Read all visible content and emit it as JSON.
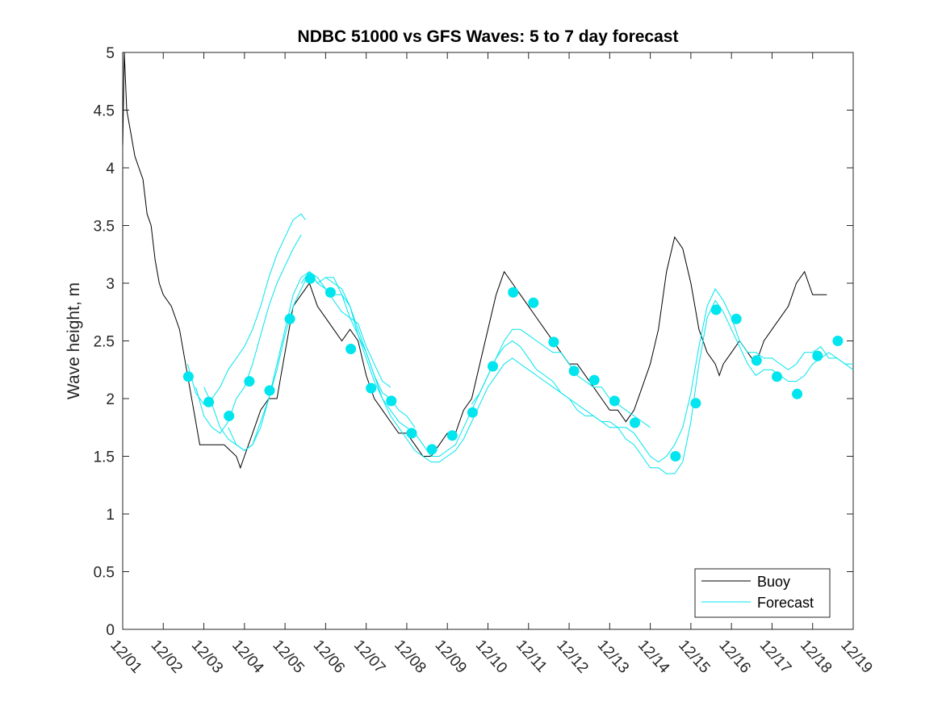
{
  "chart_data": {
    "type": "line",
    "title": "NDBC 51000 vs GFS Waves: 5 to 7 day forecast",
    "xlabel": "",
    "ylabel": "Wave height, m",
    "xlim": [
      0,
      18
    ],
    "ylim": [
      0,
      5
    ],
    "grid": false,
    "xticks": [
      {
        "value": 0,
        "label": "12/01"
      },
      {
        "value": 1,
        "label": "12/02"
      },
      {
        "value": 2,
        "label": "12/03"
      },
      {
        "value": 3,
        "label": "12/04"
      },
      {
        "value": 4,
        "label": "12/05"
      },
      {
        "value": 5,
        "label": "12/06"
      },
      {
        "value": 6,
        "label": "12/07"
      },
      {
        "value": 7,
        "label": "12/08"
      },
      {
        "value": 8,
        "label": "12/09"
      },
      {
        "value": 9,
        "label": "12/10"
      },
      {
        "value": 10,
        "label": "12/11"
      },
      {
        "value": 11,
        "label": "12/12"
      },
      {
        "value": 12,
        "label": "12/13"
      },
      {
        "value": 13,
        "label": "12/14"
      },
      {
        "value": 14,
        "label": "12/15"
      },
      {
        "value": 15,
        "label": "12/16"
      },
      {
        "value": 16,
        "label": "12/17"
      },
      {
        "value": 17,
        "label": "12/18"
      },
      {
        "value": 18,
        "label": "12/19"
      }
    ],
    "yticks": [
      {
        "value": 0,
        "label": "0"
      },
      {
        "value": 0.5,
        "label": "0.5"
      },
      {
        "value": 1,
        "label": "1"
      },
      {
        "value": 1.5,
        "label": "1.5"
      },
      {
        "value": 2,
        "label": "2"
      },
      {
        "value": 2.5,
        "label": "2.5"
      },
      {
        "value": 3,
        "label": "3"
      },
      {
        "value": 3.5,
        "label": "3.5"
      },
      {
        "value": 4,
        "label": "4"
      },
      {
        "value": 4.5,
        "label": "4.5"
      },
      {
        "value": 5,
        "label": "5"
      }
    ],
    "legend": {
      "position": "bottom-right",
      "entries": [
        {
          "label": "Buoy",
          "color": "#000000"
        },
        {
          "label": "Forecast",
          "color": "#00e5ee"
        }
      ]
    },
    "series": [
      {
        "name": "Buoy",
        "color": "#000000",
        "x": [
          0,
          0.04,
          0.1,
          0.2,
          0.3,
          0.4,
          0.5,
          0.6,
          0.7,
          0.8,
          0.9,
          1.0,
          1.2,
          1.4,
          1.6,
          1.8,
          1.9,
          2.0,
          2.2,
          2.5,
          2.8,
          2.9,
          3.0,
          3.2,
          3.4,
          3.6,
          3.8,
          4.0,
          4.2,
          4.4,
          4.6,
          4.8,
          5.0,
          5.2,
          5.4,
          5.6,
          5.8,
          6.0,
          6.2,
          6.4,
          6.6,
          6.8,
          7.0,
          7.2,
          7.4,
          7.6,
          7.8,
          8.0,
          8.2,
          8.4,
          8.6,
          8.8,
          9.0,
          9.2,
          9.4,
          9.6,
          9.8,
          10.0,
          10.2,
          10.4,
          10.6,
          10.8,
          11.0,
          11.2,
          11.4,
          11.6,
          11.8,
          12.0,
          12.2,
          12.4,
          12.6,
          12.8,
          13.0,
          13.2,
          13.4,
          13.6,
          13.8,
          14.0,
          14.2,
          14.4,
          14.6,
          14.7,
          14.8,
          15.0,
          15.2,
          15.4,
          15.6,
          15.8,
          16.0,
          16.2,
          16.4,
          16.6,
          16.8,
          17.0,
          17.2,
          17.35
        ],
        "y": [
          4.2,
          5.0,
          4.5,
          4.3,
          4.1,
          4.0,
          3.9,
          3.6,
          3.5,
          3.2,
          3.0,
          2.9,
          2.8,
          2.6,
          2.2,
          1.8,
          1.6,
          1.6,
          1.6,
          1.6,
          1.5,
          1.4,
          1.5,
          1.7,
          1.9,
          2.0,
          2.0,
          2.4,
          2.8,
          2.9,
          3.0,
          2.8,
          2.7,
          2.6,
          2.5,
          2.6,
          2.5,
          2.2,
          2.0,
          1.9,
          1.8,
          1.7,
          1.7,
          1.6,
          1.5,
          1.5,
          1.6,
          1.7,
          1.7,
          1.9,
          2.0,
          2.3,
          2.6,
          2.9,
          3.1,
          3.0,
          2.9,
          2.8,
          2.7,
          2.6,
          2.5,
          2.4,
          2.3,
          2.3,
          2.2,
          2.1,
          2.0,
          1.9,
          1.9,
          1.8,
          1.9,
          2.1,
          2.3,
          2.6,
          3.1,
          3.4,
          3.3,
          3.0,
          2.6,
          2.4,
          2.3,
          2.2,
          2.3,
          2.4,
          2.5,
          2.4,
          2.3,
          2.5,
          2.6,
          2.7,
          2.8,
          3.0,
          3.1,
          2.9,
          2.9,
          2.9
        ]
      },
      {
        "name": "Forecast",
        "color": "#00e5ee",
        "runs": [
          {
            "x": [
              1.6,
              1.8,
              2.0,
              2.2,
              2.4,
              2.6,
              2.8,
              3.0,
              3.2,
              3.4,
              3.6,
              3.8,
              4.0,
              4.2,
              4.4,
              4.5
            ],
            "y": [
              2.3,
              2.05,
              1.95,
              2.0,
              2.1,
              2.25,
              2.35,
              2.45,
              2.6,
              2.8,
              3.05,
              3.25,
              3.4,
              3.55,
              3.6,
              3.55
            ]
          },
          {
            "x": [
              1.8,
              2.0,
              2.2,
              2.4,
              2.6,
              2.8,
              3.0,
              3.2,
              3.4,
              3.6,
              3.8,
              4.0,
              4.2,
              4.4
            ],
            "y": [
              2.1,
              1.85,
              1.75,
              1.7,
              1.8,
              2.0,
              2.1,
              2.3,
              2.55,
              2.8,
              3.0,
              3.15,
              3.3,
              3.42
            ]
          },
          {
            "x": [
              2.0,
              2.2,
              2.4,
              2.6,
              2.8,
              3.0,
              3.2,
              3.4,
              3.6,
              3.8,
              4.0,
              4.2,
              4.4,
              4.6,
              4.8,
              5.0,
              5.2,
              5.4,
              5.6,
              5.8,
              6.0,
              6.2,
              6.4,
              6.6
            ],
            "y": [
              2.1,
              1.95,
              1.75,
              1.65,
              1.6,
              1.55,
              1.6,
              1.8,
              2.0,
              2.3,
              2.6,
              2.9,
              3.05,
              3.1,
              3.0,
              2.95,
              2.85,
              2.75,
              2.7,
              2.65,
              2.45,
              2.3,
              2.15,
              2.1
            ]
          },
          {
            "x": [
              2.6,
              2.8,
              3.0,
              3.2,
              3.4,
              3.6,
              3.8,
              4.0,
              4.2,
              4.4,
              4.6,
              4.8,
              5.0,
              5.2,
              5.4,
              5.6,
              5.8,
              6.0,
              6.2,
              6.4,
              6.6,
              6.8,
              7.0,
              7.2
            ],
            "y": [
              1.75,
              1.6,
              1.55,
              1.6,
              1.75,
              2.0,
              2.25,
              2.55,
              2.8,
              2.95,
              3.1,
              3.05,
              2.95,
              2.9,
              2.9,
              2.8,
              2.6,
              2.4,
              2.2,
              2.05,
              2.0,
              1.9,
              1.85,
              1.75
            ]
          },
          {
            "x": [
              4.4,
              4.6,
              4.8,
              5.0,
              5.2,
              5.4,
              5.6,
              5.8,
              6.0,
              6.2,
              6.4,
              6.6,
              6.8,
              7.0,
              7.2,
              7.4,
              7.6,
              7.8,
              8.0,
              8.2,
              8.4,
              8.6,
              8.8,
              9.0,
              9.2,
              9.4,
              9.6,
              9.8,
              10.0,
              10.2,
              10.4,
              10.6,
              10.8,
              11.0,
              11.2,
              11.4,
              11.6,
              11.8,
              12.0,
              12.2,
              12.4,
              12.6,
              12.8,
              13.0,
              13.2,
              13.4,
              13.6,
              13.8,
              14.0,
              14.2,
              14.4,
              14.6,
              14.8,
              15.0,
              15.2,
              15.4,
              15.6,
              15.8,
              16.0,
              16.2,
              16.4,
              16.6,
              16.8,
              17.0,
              17.2,
              17.4,
              17.6,
              17.8,
              18.0
            ],
            "y": [
              3.0,
              3.1,
              3.0,
              3.05,
              3.05,
              2.9,
              2.7,
              2.55,
              2.4,
              2.2,
              2.0,
              1.9,
              1.8,
              1.75,
              1.7,
              1.6,
              1.5,
              1.5,
              1.55,
              1.6,
              1.75,
              1.9,
              2.05,
              2.2,
              2.35,
              2.45,
              2.5,
              2.45,
              2.35,
              2.25,
              2.2,
              2.15,
              2.05,
              2.0,
              1.95,
              1.9,
              1.85,
              1.8,
              1.75,
              1.75,
              1.75,
              1.7,
              1.6,
              1.5,
              1.45,
              1.5,
              1.6,
              1.75,
              2.05,
              2.45,
              2.8,
              2.95,
              2.85,
              2.7,
              2.5,
              2.4,
              2.4,
              2.35,
              2.35,
              2.3,
              2.25,
              2.3,
              2.4,
              2.4,
              2.45,
              2.35,
              2.35,
              2.3,
              2.25
            ]
          },
          {
            "x": [
              5.0,
              5.2,
              5.4,
              5.6,
              5.8,
              6.0,
              6.2,
              6.4,
              6.6,
              6.8,
              7.0,
              7.2,
              7.4,
              7.6,
              7.8,
              8.0,
              8.2,
              8.4,
              8.6,
              8.8,
              9.0,
              9.2,
              9.4,
              9.6,
              9.8,
              10.0,
              10.2,
              10.4,
              10.6,
              10.8,
              11.0,
              11.2,
              11.4,
              11.6,
              11.8,
              12.0,
              12.2,
              12.4,
              12.6,
              12.8,
              13.0,
              13.2,
              13.4,
              13.6,
              13.8,
              14.0,
              14.2,
              14.4,
              14.6,
              14.8,
              15.0,
              15.2,
              15.4,
              15.6,
              15.8,
              16.0,
              16.2,
              16.4,
              16.6,
              16.8,
              17.0,
              17.2,
              17.4,
              17.6,
              17.8,
              18.0
            ],
            "y": [
              3.05,
              3.0,
              2.95,
              2.8,
              2.55,
              2.35,
              2.15,
              2.0,
              1.85,
              1.75,
              1.65,
              1.55,
              1.5,
              1.45,
              1.45,
              1.5,
              1.55,
              1.65,
              1.8,
              1.95,
              2.1,
              2.2,
              2.3,
              2.35,
              2.3,
              2.25,
              2.2,
              2.15,
              2.1,
              2.05,
              2.0,
              1.9,
              1.85,
              1.85,
              1.8,
              1.8,
              1.75,
              1.65,
              1.6,
              1.5,
              1.4,
              1.4,
              1.35,
              1.35,
              1.45,
              1.8,
              2.3,
              2.7,
              2.85,
              2.75,
              2.6,
              2.45,
              2.3,
              2.2,
              2.25,
              2.25,
              2.2,
              2.15,
              2.15,
              2.2,
              2.3,
              2.35,
              2.4,
              2.35,
              2.3,
              2.3
            ]
          },
          {
            "x": [
              8.6,
              8.8,
              9.0,
              9.2,
              9.4,
              9.6,
              9.8,
              10.0,
              10.2,
              10.4,
              10.6,
              10.8,
              11.0,
              11.2,
              11.4,
              11.6,
              11.8,
              12.0,
              12.2,
              12.4,
              12.6,
              12.8,
              13.0
            ],
            "y": [
              1.95,
              2.05,
              2.2,
              2.35,
              2.5,
              2.6,
              2.6,
              2.55,
              2.5,
              2.45,
              2.4,
              2.4,
              2.3,
              2.2,
              2.15,
              2.1,
              2.1,
              2.0,
              1.95,
              1.9,
              1.85,
              1.8,
              1.75
            ]
          }
        ],
        "markers": [
          {
            "x": 1.62,
            "y": 2.19
          },
          {
            "x": 2.12,
            "y": 1.97
          },
          {
            "x": 2.62,
            "y": 1.85
          },
          {
            "x": 3.12,
            "y": 2.15
          },
          {
            "x": 3.62,
            "y": 2.07
          },
          {
            "x": 4.12,
            "y": 2.69
          },
          {
            "x": 4.62,
            "y": 3.04
          },
          {
            "x": 5.12,
            "y": 2.92
          },
          {
            "x": 5.62,
            "y": 2.43
          },
          {
            "x": 6.12,
            "y": 2.09
          },
          {
            "x": 6.62,
            "y": 1.98
          },
          {
            "x": 7.12,
            "y": 1.7
          },
          {
            "x": 7.62,
            "y": 1.56
          },
          {
            "x": 8.12,
            "y": 1.68
          },
          {
            "x": 8.62,
            "y": 1.88
          },
          {
            "x": 9.12,
            "y": 2.28
          },
          {
            "x": 9.62,
            "y": 2.92
          },
          {
            "x": 10.12,
            "y": 2.83
          },
          {
            "x": 10.62,
            "y": 2.49
          },
          {
            "x": 11.12,
            "y": 2.24
          },
          {
            "x": 11.62,
            "y": 2.16
          },
          {
            "x": 12.12,
            "y": 1.98
          },
          {
            "x": 12.62,
            "y": 1.79
          },
          {
            "x": 13.62,
            "y": 1.5
          },
          {
            "x": 14.12,
            "y": 1.96
          },
          {
            "x": 14.62,
            "y": 2.77
          },
          {
            "x": 15.12,
            "y": 2.69
          },
          {
            "x": 15.62,
            "y": 2.33
          },
          {
            "x": 16.12,
            "y": 2.19
          },
          {
            "x": 16.62,
            "y": 2.04
          },
          {
            "x": 17.12,
            "y": 2.37
          },
          {
            "x": 17.62,
            "y": 2.5
          }
        ]
      }
    ]
  }
}
